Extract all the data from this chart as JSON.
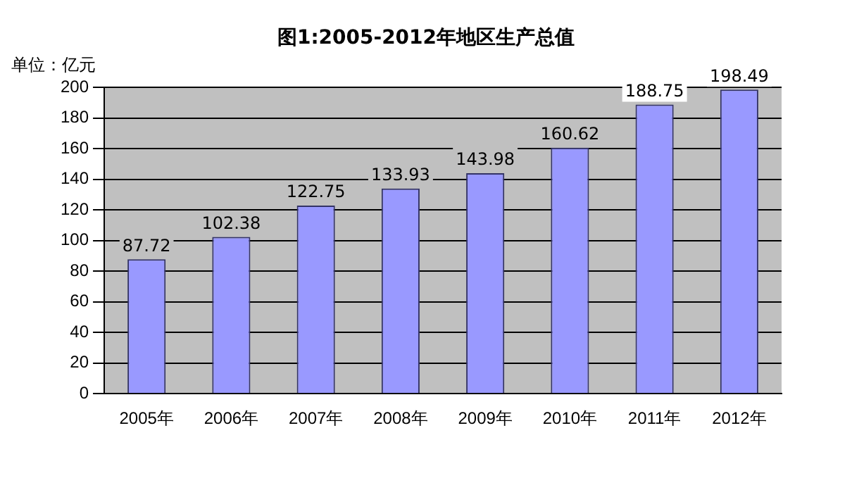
{
  "chart_data": {
    "type": "bar",
    "title": "图1:2005-2012年地区生产总值",
    "ylabel": "单位：亿元",
    "categories": [
      "2005年",
      "2006年",
      "2007年",
      "2008年",
      "2009年",
      "2010年",
      "2011年",
      "2012年"
    ],
    "values": [
      87.72,
      102.38,
      122.75,
      133.93,
      143.98,
      160.62,
      188.75,
      198.49
    ],
    "color": "#9999ff",
    "ylim": [
      0,
      200
    ],
    "yticks": [
      0,
      20,
      40,
      60,
      80,
      100,
      120,
      140,
      160,
      180,
      200
    ],
    "grid": "y",
    "data_labels": true,
    "legend": false
  }
}
